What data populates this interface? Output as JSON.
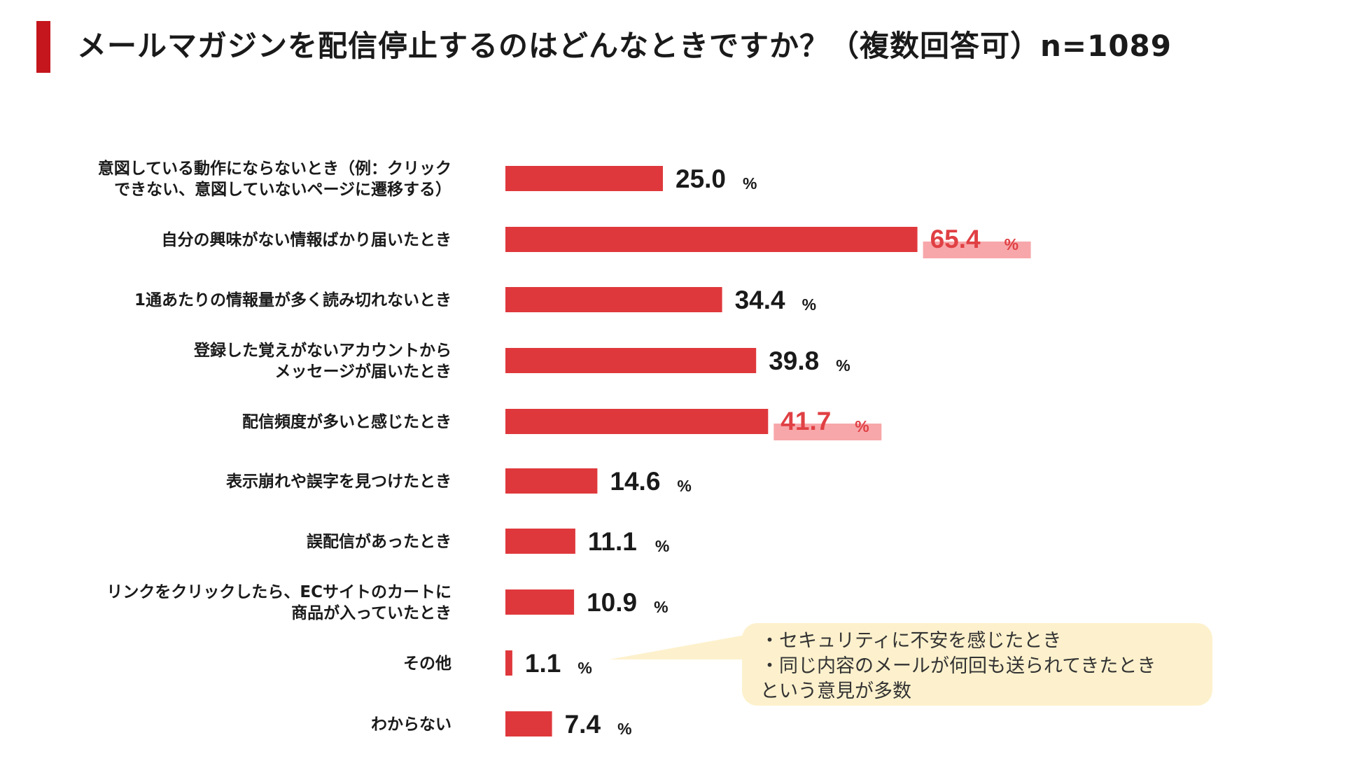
{
  "header": {
    "title": "メールマガジンを配信停止するのはどんなときですか？（複数回答可）n=1089"
  },
  "colors": {
    "accent": "#c4161c",
    "bar": "#df383c",
    "highlight_text": "#e04044",
    "highlight_band": "#f7a7aa",
    "callout_bg": "#fdf1cd"
  },
  "chart_data": {
    "type": "bar",
    "orientation": "horizontal",
    "title": "メールマガジンを配信停止するのはどんなときですか？（複数回答可）n=1089",
    "xlabel": "",
    "ylabel": "",
    "unit": "%",
    "xlim": [
      0,
      100
    ],
    "grid": false,
    "legend": "none",
    "categories": [
      [
        "意図している動作にならないとき（例：クリック",
        "できない、意図していないページに遷移する）"
      ],
      [
        "自分の興味がない情報ばかり届いたとき"
      ],
      [
        "1通あたりの情報量が多く読み切れないとき"
      ],
      [
        "登録した覚えがないアカウントから",
        "メッセージが届いたとき"
      ],
      [
        "配信頻度が多いと感じたとき"
      ],
      [
        "表示崩れや誤字を見つけたとき"
      ],
      [
        "誤配信があったとき"
      ],
      [
        "リンクをクリックしたら、ECサイトのカートに",
        "商品が入っていたとき"
      ],
      [
        "その他"
      ],
      [
        "わからない"
      ]
    ],
    "values": [
      25.0,
      65.4,
      34.4,
      39.8,
      41.7,
      14.6,
      11.1,
      10.9,
      1.1,
      7.4
    ],
    "value_labels": [
      "25.0",
      "65.4",
      "34.4",
      "39.8",
      "41.7",
      "14.6",
      "11.1",
      "10.9",
      "1.1",
      "7.4"
    ],
    "highlighted": [
      false,
      true,
      false,
      false,
      true,
      false,
      false,
      false,
      false,
      false
    ],
    "annotation": {
      "target": "その他",
      "lines": [
        "・セキュリティに不安を感じたとき",
        "・同じ内容のメールが何回も送られてきたとき",
        "という意見が多数"
      ]
    }
  }
}
